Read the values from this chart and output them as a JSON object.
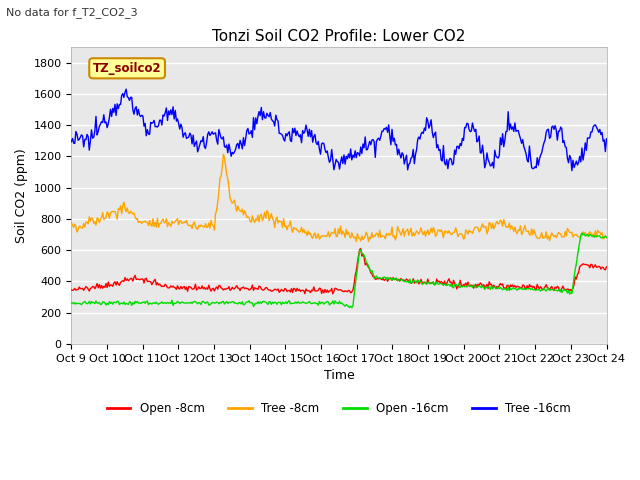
{
  "title": "Tonzi Soil CO2 Profile: Lower CO2",
  "no_data_text": "No data for f_T2_CO2_3",
  "ylabel": "Soil CO2 (ppm)",
  "xlabel": "Time",
  "legend_label": "TZ_soilco2",
  "ylim": [
    0,
    1900
  ],
  "yticks": [
    0,
    200,
    400,
    600,
    800,
    1000,
    1200,
    1400,
    1600,
    1800
  ],
  "num_points": 480,
  "series": {
    "open_8cm": {
      "color": "#ff0000",
      "label": "Open -8cm"
    },
    "tree_8cm": {
      "color": "#ffa500",
      "label": "Tree -8cm"
    },
    "open_16cm": {
      "color": "#00dd00",
      "label": "Open -16cm"
    },
    "tree_16cm": {
      "color": "#0000ff",
      "label": "Tree -16cm"
    }
  },
  "x_tick_labels": [
    "Oct 9",
    "Oct 10",
    "Oct 11",
    "Oct 12",
    "Oct 13",
    "Oct 14",
    "Oct 15",
    "Oct 16",
    "Oct 17",
    "Oct 18",
    "Oct 19",
    "Oct 20",
    "Oct 21",
    "Oct 22",
    "Oct 23",
    "Oct 24"
  ],
  "plot_bg_color": "#e8e8e8",
  "grid_color": "#ffffff",
  "title_fontsize": 11,
  "axis_fontsize": 9,
  "tick_fontsize": 8
}
